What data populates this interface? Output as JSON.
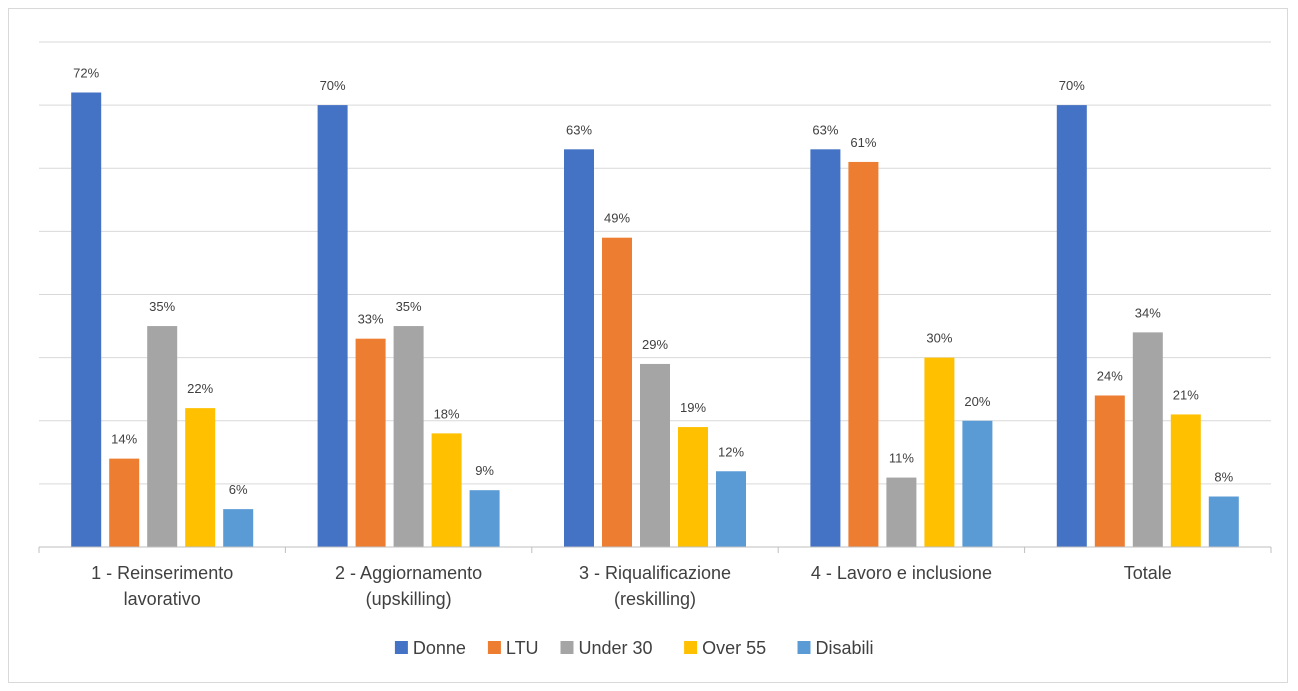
{
  "chart_data": {
    "type": "bar",
    "categories": [
      [
        "1 - Reinserimento",
        "lavorativo"
      ],
      [
        "2 - Aggiornamento",
        "(upskilling)"
      ],
      [
        "3 - Riqualificazione",
        "(reskilling)"
      ],
      [
        "4 - Lavoro e inclusione"
      ],
      [
        "Totale"
      ]
    ],
    "series": [
      {
        "name": "Donne",
        "color": "#4472C4",
        "values": [
          72,
          70,
          63,
          63,
          70
        ],
        "labels": [
          "72%",
          "70%",
          "63%",
          "63%",
          "70%"
        ]
      },
      {
        "name": "LTU",
        "color": "#ED7D31",
        "values": [
          14,
          33,
          49,
          61,
          24
        ],
        "labels": [
          "14%",
          "33%",
          "49%",
          "61%",
          "24%"
        ]
      },
      {
        "name": "Under 30",
        "color": "#A5A5A5",
        "values": [
          35,
          35,
          29,
          11,
          34
        ],
        "labels": [
          "35%",
          "35%",
          "29%",
          "11%",
          "34%"
        ]
      },
      {
        "name": "Over 55",
        "color": "#FFC000",
        "values": [
          22,
          18,
          19,
          30,
          21
        ],
        "labels": [
          "22%",
          "18%",
          "19%",
          "30%",
          "21%"
        ]
      },
      {
        "name": "Disabili",
        "color": "#5B9BD5",
        "values": [
          6,
          9,
          12,
          20,
          8
        ],
        "labels": [
          "6%",
          "9%",
          "12%",
          "20%",
          "8%"
        ]
      }
    ],
    "ylim": [
      0,
      80
    ],
    "gridlines": true,
    "legend_position": "bottom"
  }
}
